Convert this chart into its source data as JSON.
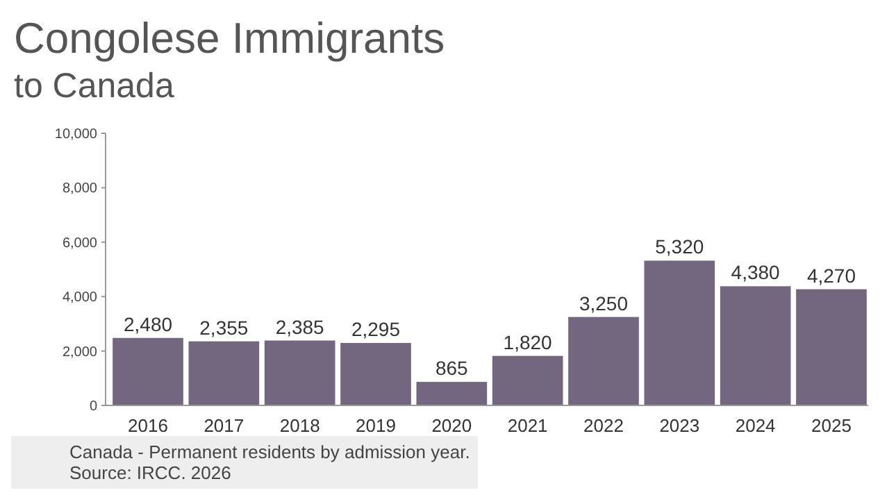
{
  "chart_data": {
    "type": "bar",
    "title": "Congolese Immigrants",
    "subtitle": "to Canada",
    "categories": [
      "2016",
      "2017",
      "2018",
      "2019",
      "2020",
      "2021",
      "2022",
      "2023",
      "2024",
      "2025"
    ],
    "values": [
      2480,
      2355,
      2385,
      2295,
      865,
      1820,
      3250,
      5320,
      4380,
      4270
    ],
    "color": "#72677f",
    "ylim": [
      0,
      10000
    ],
    "yticks": [
      {
        "value": 0,
        "label": "0"
      },
      {
        "value": 2000,
        "label": "2,000"
      },
      {
        "value": 4000,
        "label": "4,000"
      },
      {
        "value": 6000,
        "label": "6,000"
      },
      {
        "value": 8000,
        "label": "8,000"
      },
      {
        "value": 10000,
        "label": "10,000"
      }
    ],
    "value_labels": [
      "2,480",
      "2,355",
      "2,385",
      "2,295",
      "865",
      "1,820",
      "3,250",
      "5,320",
      "4,380",
      "4,270"
    ],
    "grid": false,
    "annotations": [
      "Canada - Permanent residents by admission year.",
      "Source: IRCC. 2026"
    ]
  }
}
